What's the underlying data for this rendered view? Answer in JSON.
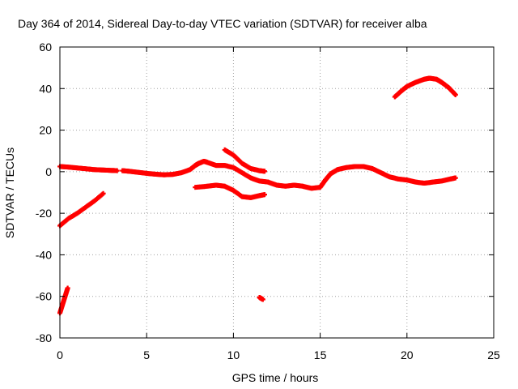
{
  "chart_data": {
    "type": "scatter",
    "title": "Day 364 of 2014, Sidereal Day-to-day VTEC variation (SDTVAR) for receiver alba",
    "xlabel": "GPS time / hours",
    "ylabel": "SDTVAR / TECUs",
    "xlim": [
      0,
      25
    ],
    "ylim": [
      -80,
      60
    ],
    "xticks": [
      0,
      5,
      10,
      15,
      20,
      25
    ],
    "yticks": [
      -80,
      -60,
      -40,
      -20,
      0,
      20,
      40,
      60
    ],
    "grid": true,
    "marker": "plus",
    "color": "#ff0000",
    "series": [
      {
        "name": "upper-main",
        "points": [
          [
            0.0,
            2.5
          ],
          [
            0.5,
            2.2
          ],
          [
            1.0,
            1.8
          ],
          [
            1.5,
            1.4
          ],
          [
            2.0,
            1.0
          ],
          [
            2.5,
            0.8
          ],
          [
            3.0,
            0.6
          ],
          [
            3.3,
            0.5
          ]
        ]
      },
      {
        "name": "band-4-8",
        "points": [
          [
            3.6,
            0.5
          ],
          [
            4.0,
            0.2
          ],
          [
            4.5,
            -0.3
          ],
          [
            5.0,
            -0.8
          ],
          [
            5.5,
            -1.2
          ],
          [
            6.0,
            -1.5
          ],
          [
            6.5,
            -1.3
          ],
          [
            7.0,
            -0.5
          ],
          [
            7.5,
            1.0
          ],
          [
            7.8,
            3.0
          ],
          [
            8.0,
            4.0
          ],
          [
            8.3,
            5.0
          ],
          [
            8.5,
            4.5
          ],
          [
            9.0,
            3.0
          ],
          [
            9.5,
            3.0
          ],
          [
            10.0,
            2.0
          ],
          [
            10.5,
            -0.5
          ],
          [
            11.0,
            -3.0
          ],
          [
            11.5,
            -4.5
          ],
          [
            12.0,
            -5.0
          ]
        ]
      },
      {
        "name": "upper-9-12",
        "points": [
          [
            9.5,
            10.5
          ],
          [
            10.0,
            8.0
          ],
          [
            10.5,
            4.0
          ],
          [
            11.0,
            1.5
          ],
          [
            11.5,
            0.5
          ],
          [
            11.8,
            0.2
          ]
        ]
      },
      {
        "name": "lower-8-12",
        "points": [
          [
            7.8,
            -7.5
          ],
          [
            8.5,
            -7.0
          ],
          [
            9.0,
            -6.5
          ],
          [
            9.5,
            -7.0
          ],
          [
            10.0,
            -9.0
          ],
          [
            10.5,
            -12.0
          ],
          [
            11.0,
            -12.5
          ],
          [
            11.5,
            -11.5
          ],
          [
            11.8,
            -11.0
          ]
        ]
      },
      {
        "name": "band-12-15",
        "points": [
          [
            12.0,
            -5.0
          ],
          [
            12.5,
            -6.5
          ],
          [
            13.0,
            -7.0
          ],
          [
            13.5,
            -6.5
          ],
          [
            14.0,
            -7.0
          ],
          [
            14.5,
            -8.0
          ],
          [
            15.0,
            -7.5
          ],
          [
            15.3,
            -4.0
          ],
          [
            15.6,
            -1.0
          ]
        ]
      },
      {
        "name": "band-15-23",
        "points": [
          [
            15.6,
            -1.0
          ],
          [
            16.0,
            1.0
          ],
          [
            16.5,
            2.0
          ],
          [
            17.0,
            2.5
          ],
          [
            17.5,
            2.5
          ],
          [
            18.0,
            1.5
          ],
          [
            18.5,
            -0.5
          ],
          [
            19.0,
            -2.5
          ],
          [
            19.5,
            -3.5
          ],
          [
            20.0,
            -4.0
          ],
          [
            20.5,
            -5.0
          ],
          [
            21.0,
            -5.5
          ],
          [
            21.5,
            -5.0
          ],
          [
            22.0,
            -4.5
          ],
          [
            22.5,
            -3.5
          ],
          [
            22.8,
            -3.0
          ]
        ]
      },
      {
        "name": "arc-19-23",
        "points": [
          [
            19.3,
            36.0
          ],
          [
            19.7,
            39.0
          ],
          [
            20.0,
            41.0
          ],
          [
            20.5,
            43.0
          ],
          [
            21.0,
            44.5
          ],
          [
            21.3,
            45.0
          ],
          [
            21.7,
            44.5
          ],
          [
            22.0,
            43.0
          ],
          [
            22.4,
            40.5
          ],
          [
            22.8,
            37.0
          ]
        ]
      },
      {
        "name": "rising-0-2.5",
        "points": [
          [
            0.0,
            -26.0
          ],
          [
            0.5,
            -22.5
          ],
          [
            1.0,
            -20.0
          ],
          [
            1.5,
            -17.0
          ],
          [
            2.0,
            -14.0
          ],
          [
            2.5,
            -10.5
          ]
        ]
      },
      {
        "name": "spike-0-0.5",
        "points": [
          [
            0.0,
            -68.0
          ],
          [
            0.15,
            -64.0
          ],
          [
            0.3,
            -60.0
          ],
          [
            0.45,
            -56.0
          ]
        ]
      },
      {
        "name": "dot-11.6",
        "points": [
          [
            11.5,
            -60.5
          ],
          [
            11.7,
            -61.5
          ]
        ]
      }
    ]
  }
}
